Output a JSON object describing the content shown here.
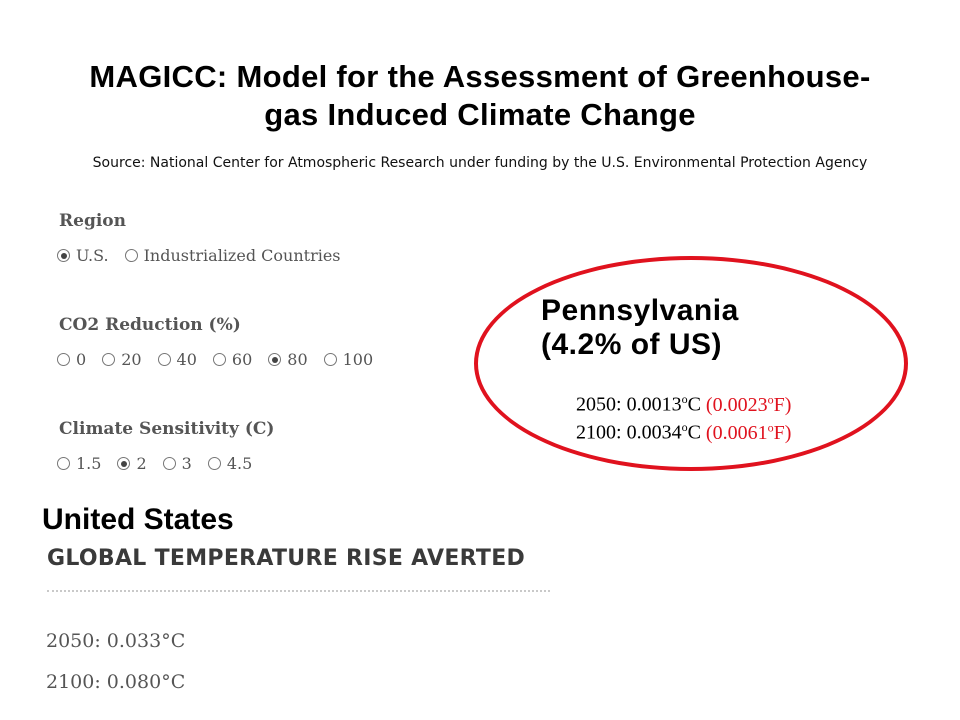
{
  "slide": {
    "title_line1": "MAGICC: Model for the Assessment of Greenhouse-",
    "title_line2": "gas Induced Climate Change",
    "source": "Source: National Center for Atmospheric Research under funding by the U.S. Environmental Protection Agency"
  },
  "form": {
    "region": {
      "label": "Region",
      "options": [
        {
          "label": "U.S.",
          "checked": true
        },
        {
          "label": "Industrialized Countries",
          "checked": false
        }
      ]
    },
    "co2": {
      "label": "CO2 Reduction (%)",
      "options": [
        {
          "label": "0",
          "checked": false
        },
        {
          "label": "20",
          "checked": false
        },
        {
          "label": "40",
          "checked": false
        },
        {
          "label": "60",
          "checked": false
        },
        {
          "label": "80",
          "checked": true
        },
        {
          "label": "100",
          "checked": false
        }
      ]
    },
    "sensitivity": {
      "label": "Climate Sensitivity (C)",
      "options": [
        {
          "label": "1.5",
          "checked": false
        },
        {
          "label": "2",
          "checked": true
        },
        {
          "label": "3",
          "checked": false
        },
        {
          "label": "4.5",
          "checked": false
        }
      ]
    }
  },
  "pennsylvania": {
    "name": "Pennsylvania",
    "share": "(4.2% of US)",
    "rows": [
      {
        "year": "2050:",
        "c_value": "0.0013",
        "c_unit": "C",
        "f_open": "(0.0023",
        "f_unit": "F)"
      },
      {
        "year": "2100:",
        "c_value": "0.0034",
        "c_unit": "C",
        "f_open": "(0.0061",
        "f_unit": "F)"
      }
    ],
    "degree_mark": "o",
    "accent_color": "#e0121e"
  },
  "us": {
    "title": "United States",
    "heading": "GLOBAL TEMPERATURE RISE AVERTED",
    "line_2050": "2050: 0.033°C",
    "line_2100": "2100: 0.080°C"
  }
}
